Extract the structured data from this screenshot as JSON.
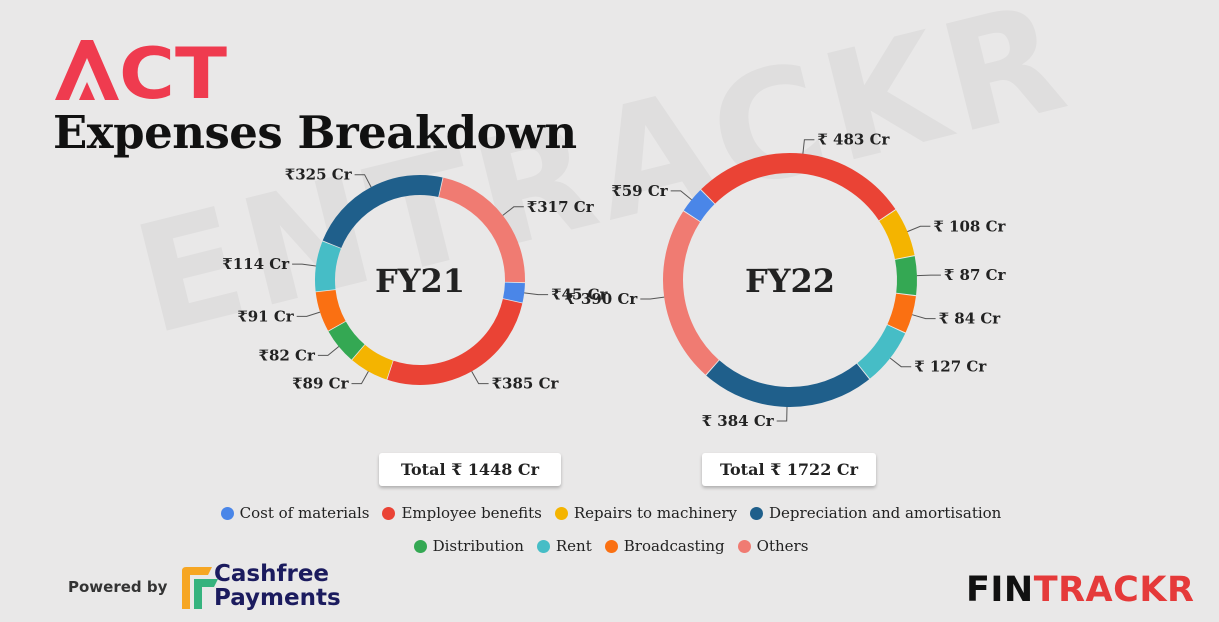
{
  "brand": {
    "logo_text": "ACT",
    "logo_color": "#ef3b4f"
  },
  "page_title": "Expenses Breakdown",
  "watermark": "ENTRACKR",
  "colors": {
    "Cost of materials": "#4a86e8",
    "Employee benefits": "#ea4335",
    "Repairs to machinery": "#f4b400",
    "Depreciation and amortisation": "#1f5f8b",
    "Distribution": "#34a853",
    "Rent": "#46bdc6",
    "Broadcasting": "#fa7012",
    "Others": "#f07b72"
  },
  "chart_data": [
    {
      "type": "pie",
      "donut": true,
      "title": "FY21",
      "total_label": "Total ₹ 1448 Cr",
      "slices": [
        {
          "category": "Others",
          "value": 317,
          "label": "₹317 Cr"
        },
        {
          "category": "Cost of materials",
          "value": 45,
          "label": "₹45 Cr"
        },
        {
          "category": "Employee benefits",
          "value": 385,
          "label": "₹385 Cr"
        },
        {
          "category": "Repairs to machinery",
          "value": 89,
          "label": "₹89 Cr"
        },
        {
          "category": "Distribution",
          "value": 82,
          "label": "₹82 Cr"
        },
        {
          "category": "Broadcasting",
          "value": 91,
          "label": "₹91 Cr"
        },
        {
          "category": "Rent",
          "value": 114,
          "label": "₹114 Cr"
        },
        {
          "category": "Depreciation and amortisation",
          "value": 325,
          "label": "₹325 Cr"
        }
      ]
    },
    {
      "type": "pie",
      "donut": true,
      "title": "FY22",
      "total_label": "Total ₹ 1722 Cr",
      "slices": [
        {
          "category": "Employee benefits",
          "value": 483,
          "label": "₹ 483 Cr"
        },
        {
          "category": "Repairs to machinery",
          "value": 108,
          "label": "₹ 108 Cr"
        },
        {
          "category": "Distribution",
          "value": 87,
          "label": "₹ 87 Cr"
        },
        {
          "category": "Broadcasting",
          "value": 84,
          "label": "₹ 84 Cr"
        },
        {
          "category": "Rent",
          "value": 127,
          "label": "₹ 127 Cr"
        },
        {
          "category": "Depreciation and amortisation",
          "value": 384,
          "label": "₹ 384 Cr"
        },
        {
          "category": "Others",
          "value": 390,
          "label": "₹ 390 Cr"
        },
        {
          "category": "Cost of materials",
          "value": 59,
          "label": "₹59 Cr"
        }
      ]
    }
  ],
  "legend": {
    "row1": [
      "Cost of materials",
      "Employee benefits",
      "Repairs to machinery",
      "Depreciation and amortisation"
    ],
    "row2": [
      "Distribution",
      "Rent",
      "Broadcasting",
      "Others"
    ]
  },
  "footer": {
    "powered_by": "Powered by",
    "partner_line1": "Cashfree",
    "partner_line2": "Payments",
    "brand_part1": "FIN",
    "brand_part2": "TRACKR"
  }
}
